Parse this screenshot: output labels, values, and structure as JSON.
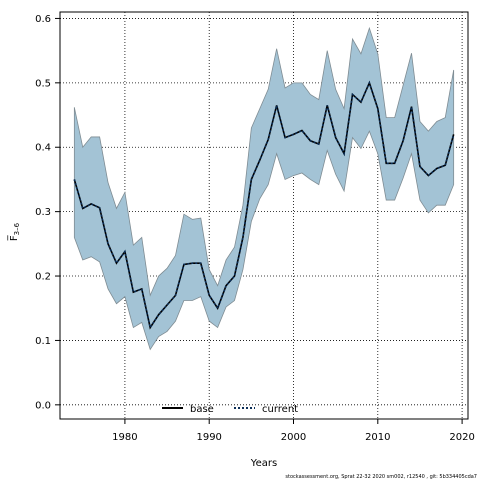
{
  "chart_data": {
    "type": "line",
    "xlabel": "Years",
    "ylabel": "F̅",
    "ylabel_sub": "3–6",
    "xlim": [
      1972.3,
      2020.7
    ],
    "ylim": [
      -0.022,
      0.61
    ],
    "x_ticks": [
      1980,
      1990,
      2000,
      2010,
      2020
    ],
    "y_ticks": [
      0.0,
      0.1,
      0.2,
      0.3,
      0.4,
      0.5,
      0.6
    ],
    "x_tick_labels": [
      "1980",
      "1990",
      "2000",
      "2010",
      "2020"
    ],
    "y_tick_labels": [
      "0.0",
      "0.1",
      "0.2",
      "0.3",
      "0.4",
      "0.5",
      "0.6"
    ],
    "grid": true,
    "legend_placement": "bottom-center",
    "colors": {
      "band": "#a3c3d5",
      "band_edge": "#7f8c93",
      "current": "#0b2e57",
      "base": "#000000"
    },
    "x": [
      1974,
      1975,
      1976,
      1977,
      1978,
      1979,
      1980,
      1981,
      1982,
      1983,
      1984,
      1985,
      1986,
      1987,
      1988,
      1989,
      1990,
      1991,
      1992,
      1993,
      1994,
      1995,
      1996,
      1997,
      1998,
      1999,
      2000,
      2001,
      2002,
      2003,
      2004,
      2005,
      2006,
      2007,
      2008,
      2009,
      2010,
      2011,
      2012,
      2013,
      2014,
      2015,
      2016,
      2017,
      2018,
      2019
    ],
    "series": [
      {
        "name": "base",
        "values": [
          0.35,
          0.305,
          0.312,
          0.306,
          0.25,
          0.22,
          0.238,
          0.175,
          0.18,
          0.12,
          0.14,
          0.155,
          0.17,
          0.218,
          0.22,
          0.22,
          0.17,
          0.15,
          0.185,
          0.2,
          0.26,
          0.35,
          0.38,
          0.412,
          0.465,
          0.415,
          0.42,
          0.426,
          0.41,
          0.405,
          0.465,
          0.415,
          0.39,
          0.482,
          0.47,
          0.5,
          0.46,
          0.375,
          0.375,
          0.41,
          0.463,
          0.37,
          0.356,
          0.367,
          0.372,
          0.42
        ]
      },
      {
        "name": "current",
        "values": [
          0.35,
          0.305,
          0.312,
          0.306,
          0.25,
          0.22,
          0.238,
          0.175,
          0.18,
          0.12,
          0.14,
          0.155,
          0.17,
          0.218,
          0.22,
          0.22,
          0.17,
          0.15,
          0.185,
          0.2,
          0.26,
          0.35,
          0.38,
          0.412,
          0.465,
          0.415,
          0.42,
          0.426,
          0.41,
          0.405,
          0.465,
          0.415,
          0.39,
          0.482,
          0.47,
          0.5,
          0.46,
          0.375,
          0.375,
          0.41,
          0.463,
          0.37,
          0.356,
          0.367,
          0.372,
          0.42
        ]
      }
    ],
    "band": {
      "upper": [
        0.462,
        0.4,
        0.416,
        0.416,
        0.345,
        0.305,
        0.33,
        0.248,
        0.26,
        0.17,
        0.2,
        0.212,
        0.232,
        0.296,
        0.288,
        0.29,
        0.21,
        0.185,
        0.225,
        0.245,
        0.31,
        0.43,
        0.46,
        0.49,
        0.553,
        0.492,
        0.5,
        0.5,
        0.482,
        0.474,
        0.55,
        0.49,
        0.46,
        0.568,
        0.545,
        0.585,
        0.545,
        0.446,
        0.446,
        0.496,
        0.546,
        0.44,
        0.425,
        0.44,
        0.446,
        0.52
      ],
      "lower": [
        0.26,
        0.225,
        0.23,
        0.222,
        0.18,
        0.157,
        0.168,
        0.12,
        0.128,
        0.086,
        0.106,
        0.114,
        0.13,
        0.162,
        0.162,
        0.168,
        0.13,
        0.12,
        0.152,
        0.162,
        0.21,
        0.285,
        0.32,
        0.342,
        0.39,
        0.35,
        0.356,
        0.36,
        0.35,
        0.342,
        0.395,
        0.358,
        0.332,
        0.415,
        0.398,
        0.425,
        0.39,
        0.318,
        0.318,
        0.352,
        0.39,
        0.318,
        0.298,
        0.31,
        0.31,
        0.342
      ]
    }
  },
  "footer": "stockassessment.org, Sprat 22-32 2020 sm002, r12540 , git: 5b334405cda7"
}
